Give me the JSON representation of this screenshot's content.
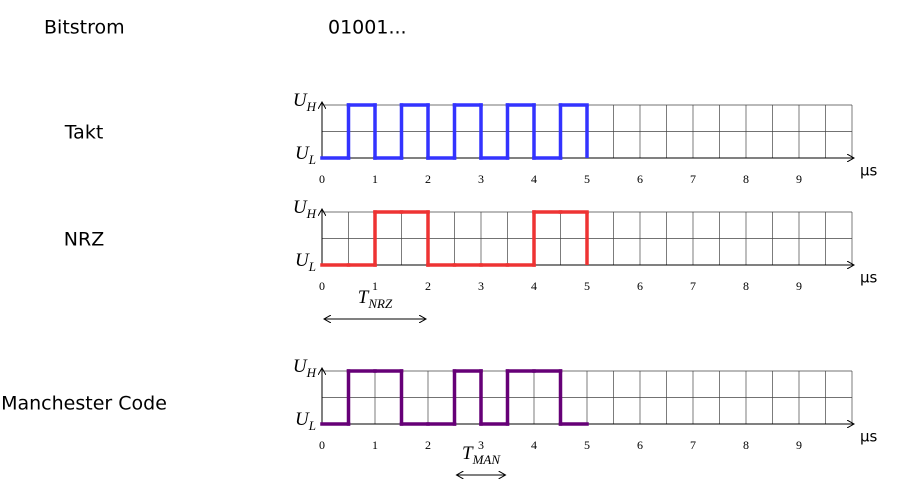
{
  "bitstream": {
    "label": "Bitstrom",
    "value": "01001..."
  },
  "axis": {
    "unit": "µs",
    "ticks": [
      0,
      1,
      2,
      3,
      4,
      5,
      6,
      7,
      8,
      9
    ],
    "range": [
      0,
      10
    ],
    "step": 0.5,
    "high": {
      "symbol": "U",
      "sub": "H"
    },
    "low": {
      "symbol": "U",
      "sub": "L"
    }
  },
  "signals": [
    {
      "label": "Takt",
      "color": "#3333ff",
      "levels": [
        0,
        1,
        0,
        1,
        0,
        1,
        0,
        1,
        0,
        1
      ]
    },
    {
      "label": "NRZ",
      "color": "#ee3333",
      "levels": [
        0,
        0,
        1,
        1,
        0,
        0,
        0,
        0,
        1,
        1
      ],
      "annotation": {
        "symbol": "T",
        "sub": "NRZ",
        "from": 0,
        "to": 2
      }
    },
    {
      "label": "Manchester Code",
      "color": "#660077",
      "levels": [
        0,
        1,
        1,
        0,
        0,
        1,
        0,
        1,
        1,
        0
      ],
      "annotation": {
        "symbol": "T",
        "sub": "MAN",
        "from": 2.5,
        "to": 3.5
      }
    }
  ]
}
